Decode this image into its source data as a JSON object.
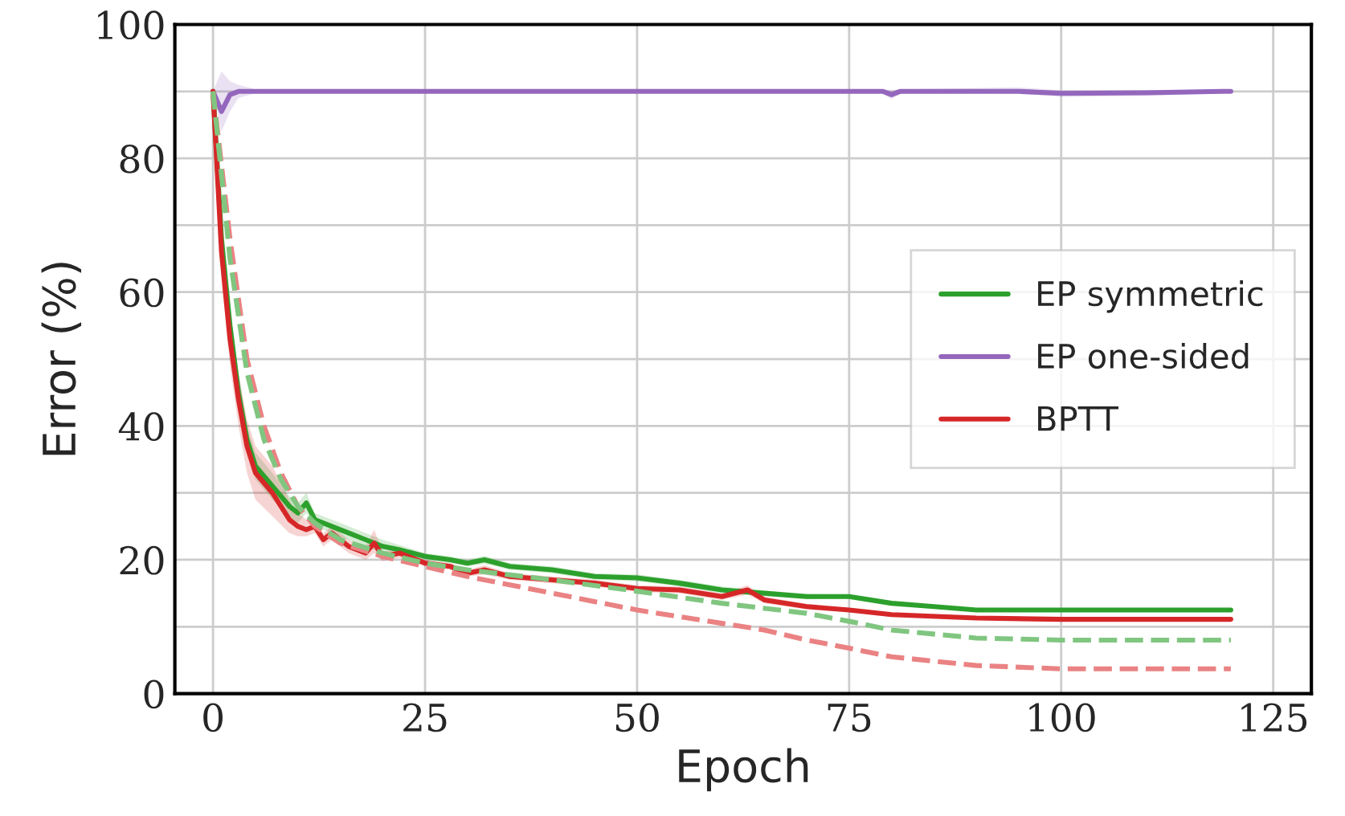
{
  "chart_data": {
    "type": "line",
    "xlabel": "Epoch",
    "ylabel": "Error (%)",
    "xlim": [
      -4.5,
      129.5
    ],
    "ylim": [
      0,
      100
    ],
    "xticks": [
      0,
      25,
      50,
      75,
      100,
      125
    ],
    "yticks": [
      0,
      {
        "value": 10,
        "label": null
      },
      20,
      {
        "value": 30,
        "label": null
      },
      40,
      {
        "value": 50,
        "label": null
      },
      60,
      {
        "value": 70,
        "label": null
      },
      80,
      {
        "value": 90,
        "label": null
      },
      100
    ],
    "grid": true,
    "legend": "right",
    "series": [
      {
        "name": "EP symmetric",
        "color": "#2ca02c",
        "line_style": "solid",
        "x": [
          0,
          1,
          2,
          3,
          4,
          5,
          7,
          9,
          10,
          11,
          12,
          14,
          16,
          18,
          20,
          22,
          25,
          28,
          30,
          32,
          35,
          40,
          45,
          50,
          55,
          60,
          65,
          70,
          75,
          80,
          85,
          90,
          95,
          100,
          110,
          120
        ],
        "values": [
          90,
          68,
          55,
          45,
          38,
          34,
          31,
          28,
          27,
          28.5,
          26,
          25,
          24,
          23,
          22,
          21.5,
          20.5,
          20,
          19.5,
          20,
          19,
          18.5,
          17.5,
          17.3,
          16.5,
          15.5,
          15,
          14.5,
          14.5,
          13.5,
          13,
          12.5,
          12.5,
          12.5,
          12.5,
          12.5
        ],
        "lower": [
          90,
          66,
          52,
          42,
          36,
          32,
          29,
          26.5,
          25.5,
          27,
          25,
          24,
          23,
          22,
          21,
          20.8,
          20,
          19.5,
          19,
          19.4,
          18.5,
          18,
          17,
          16.8,
          16,
          15,
          14.6,
          14.1,
          14.2,
          13.2,
          12.8,
          12.3,
          12.3,
          12.3,
          12.3,
          12.3
        ],
        "upper": [
          90,
          70,
          58,
          48,
          40,
          36,
          33,
          29.5,
          28.5,
          30,
          27,
          26,
          25,
          24,
          23,
          22.2,
          21,
          20.5,
          20,
          20.6,
          19.5,
          19,
          18,
          17.8,
          17,
          16,
          15.4,
          14.9,
          14.8,
          13.8,
          13.2,
          12.7,
          12.7,
          12.7,
          12.7,
          12.7
        ]
      },
      {
        "color": "#80c680",
        "line_style": "dashed",
        "x": [
          0,
          2,
          4,
          6,
          8,
          10,
          12,
          15,
          20,
          25,
          30,
          40,
          50,
          60,
          70,
          75,
          80,
          90,
          100,
          120
        ],
        "values": [
          90,
          65,
          48,
          38,
          32,
          28,
          25.5,
          23,
          21,
          19.5,
          18.5,
          17,
          15.3,
          13.5,
          12,
          10.8,
          9.5,
          8.3,
          8,
          8
        ]
      },
      {
        "name": "EP one-sided",
        "color": "#9467bd",
        "line_style": "solid",
        "x": [
          0,
          1,
          2,
          3,
          5,
          10,
          20,
          40,
          50,
          60,
          79,
          80,
          81,
          95,
          100,
          110,
          119,
          120
        ],
        "values": [
          90,
          87,
          89.5,
          90,
          90,
          90,
          90,
          90,
          90,
          90,
          90,
          89.5,
          90,
          90,
          89.7,
          89.8,
          90,
          90
        ],
        "lower": [
          90,
          84,
          87,
          89,
          89.7,
          89.8,
          89.8,
          89.8,
          89.8,
          89.8,
          89.7,
          88.8,
          89.7,
          89.7,
          89.2,
          89.3,
          89.7,
          89.8
        ],
        "upper": [
          90,
          93,
          91.5,
          91,
          90.3,
          90.2,
          90.2,
          90.2,
          90.2,
          90.2,
          90.3,
          90.2,
          90.3,
          90.6,
          90.2,
          90.2,
          90.3,
          90.2
        ]
      },
      {
        "name": "BPTT",
        "color": "#d62728",
        "line_style": "solid",
        "x": [
          0,
          1,
          2,
          3,
          4,
          5,
          7,
          9,
          10,
          11,
          12,
          13,
          14,
          16,
          18,
          19,
          20,
          22,
          25,
          28,
          30,
          32,
          35,
          40,
          45,
          50,
          55,
          60,
          63,
          65,
          70,
          75,
          80,
          90,
          100,
          120
        ],
        "values": [
          90,
          66,
          53,
          44,
          37,
          33,
          30,
          26,
          25,
          24.5,
          25,
          23,
          24,
          22,
          21,
          22.5,
          20.5,
          21,
          19.5,
          19,
          18,
          18.5,
          17.5,
          17,
          16.5,
          15.7,
          15.5,
          14.5,
          15.5,
          14,
          13,
          12.5,
          11.8,
          11.3,
          11.1,
          11.1
        ],
        "lower": [
          90,
          62,
          49,
          40,
          33,
          29,
          26.5,
          24,
          23.5,
          23.5,
          24,
          22,
          23,
          21,
          20,
          21,
          19.8,
          20.3,
          19,
          18.5,
          17.5,
          17.8,
          17,
          16.5,
          16,
          15.2,
          15,
          14,
          14.8,
          13.5,
          12.6,
          12.2,
          11.6,
          11.1,
          11,
          11
        ],
        "upper": [
          90,
          70,
          57,
          48,
          41,
          37,
          34,
          29,
          27,
          26,
          26,
          24,
          25,
          23,
          22,
          24.5,
          21.2,
          21.7,
          20,
          19.5,
          18.5,
          19.2,
          18,
          17.5,
          17,
          16.2,
          16,
          15,
          16.2,
          14.5,
          13.4,
          12.8,
          12,
          11.5,
          11.2,
          11.2
        ]
      },
      {
        "color": "#ea8283",
        "line_style": "dashed",
        "x": [
          0,
          2,
          4,
          6,
          8,
          10,
          12,
          15,
          20,
          25,
          30,
          40,
          50,
          60,
          65,
          70,
          75,
          80,
          90,
          100,
          120
        ],
        "values": [
          90,
          68,
          50,
          40,
          33,
          28,
          25,
          22.5,
          20.5,
          19,
          17.5,
          15,
          12.5,
          10.5,
          9.5,
          8,
          6.8,
          5.5,
          4.2,
          3.7,
          3.7
        ]
      }
    ]
  }
}
